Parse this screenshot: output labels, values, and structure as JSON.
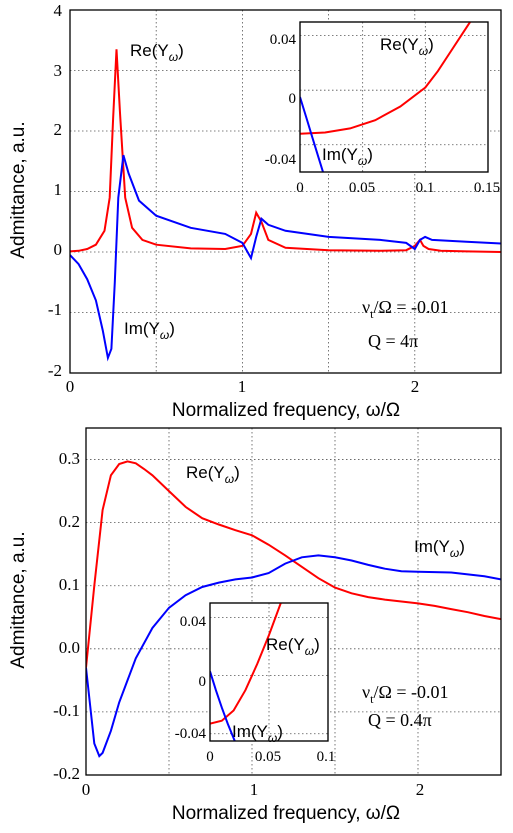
{
  "chart_data": [
    {
      "type": "line",
      "xlabel": "Normalized frequency, ω/Ω",
      "ylabel": "Admittance, a.u.",
      "xlim": [
        0,
        2.5
      ],
      "ylim": [
        -2,
        4
      ],
      "grid": true,
      "x_ticks": [
        "0",
        "1",
        "2"
      ],
      "y_ticks": [
        "-2",
        "-1",
        "0",
        "1",
        "2",
        "3",
        "4"
      ],
      "series": [
        {
          "name": "Re(Yω)",
          "color": "#ff0000",
          "x": [
            0,
            0.05,
            0.1,
            0.15,
            0.2,
            0.23,
            0.25,
            0.27,
            0.29,
            0.32,
            0.36,
            0.42,
            0.5,
            0.7,
            0.9,
            1.0,
            1.05,
            1.08,
            1.11,
            1.15,
            1.25,
            1.5,
            1.8,
            1.95,
            2.0,
            2.03,
            2.05,
            2.08,
            2.15,
            2.3,
            2.5
          ],
          "y": [
            0.01,
            0.02,
            0.05,
            0.12,
            0.35,
            0.9,
            2.2,
            3.35,
            2.3,
            0.9,
            0.4,
            0.2,
            0.12,
            0.06,
            0.05,
            0.1,
            0.3,
            0.65,
            0.5,
            0.2,
            0.07,
            0.03,
            0.02,
            0.03,
            0.1,
            0.2,
            0.1,
            0.05,
            0.02,
            0.01,
            0.0
          ]
        },
        {
          "name": "Im(Yω)",
          "color": "#0000ff",
          "x": [
            0,
            0.05,
            0.1,
            0.15,
            0.19,
            0.22,
            0.24,
            0.26,
            0.28,
            0.31,
            0.34,
            0.4,
            0.5,
            0.7,
            0.9,
            1.0,
            1.05,
            1.08,
            1.11,
            1.15,
            1.25,
            1.5,
            1.8,
            1.95,
            2.0,
            2.03,
            2.06,
            2.1,
            2.3,
            2.5
          ],
          "y": [
            -0.05,
            -0.2,
            -0.45,
            -0.8,
            -1.3,
            -1.75,
            -1.6,
            -0.5,
            0.9,
            1.6,
            1.3,
            0.85,
            0.6,
            0.4,
            0.3,
            0.15,
            -0.1,
            0.25,
            0.55,
            0.45,
            0.35,
            0.25,
            0.2,
            0.15,
            0.05,
            0.2,
            0.25,
            0.2,
            0.17,
            0.14
          ]
        }
      ],
      "labels": {
        "re": "Re(Y",
        "im": "Im(Y",
        "sub": "ω",
        "close": ")",
        "param_nu": "ν",
        "param_nu_sub": "t",
        "param_ratio": "/Ω = -0.01",
        "param_q": "Q = 4π"
      },
      "inset": {
        "xlim": [
          0,
          0.15
        ],
        "ylim": [
          -0.06,
          0.05
        ],
        "x_ticks": [
          "0",
          "0.05",
          "0.1",
          "0.15"
        ],
        "y_ticks": [
          "0.04",
          "0",
          "-0.04"
        ],
        "re_x": [
          0,
          0.02,
          0.04,
          0.06,
          0.08,
          0.1,
          0.11,
          0.12,
          0.13,
          0.14
        ],
        "re_y": [
          -0.032,
          -0.031,
          -0.028,
          -0.022,
          -0.012,
          0.002,
          0.014,
          0.028,
          0.042,
          0.056
        ],
        "im_x": [
          0,
          0.005,
          0.01,
          0.015,
          0.02
        ],
        "im_y": [
          -0.005,
          -0.02,
          -0.035,
          -0.05,
          -0.065
        ]
      }
    },
    {
      "type": "line",
      "xlabel": "Normalized frequency, ω/Ω",
      "ylabel": "Admittance, a.u.",
      "xlim": [
        0,
        2.5
      ],
      "ylim": [
        -0.2,
        0.35
      ],
      "grid": true,
      "x_ticks": [
        "0",
        "1",
        "2"
      ],
      "y_ticks": [
        "-0.2",
        "-0.1",
        "0.0",
        "0.1",
        "0.2",
        "0.3"
      ],
      "series": [
        {
          "name": "Re(Yω)",
          "color": "#ff0000",
          "x": [
            0,
            0.05,
            0.1,
            0.15,
            0.2,
            0.25,
            0.3,
            0.35,
            0.4,
            0.5,
            0.6,
            0.7,
            0.8,
            0.9,
            1.0,
            1.1,
            1.2,
            1.3,
            1.4,
            1.5,
            1.6,
            1.7,
            1.8,
            1.9,
            2.0,
            2.1,
            2.2,
            2.3,
            2.4,
            2.5
          ],
          "y": [
            -0.03,
            0.1,
            0.22,
            0.275,
            0.293,
            0.297,
            0.294,
            0.285,
            0.275,
            0.25,
            0.225,
            0.207,
            0.197,
            0.188,
            0.18,
            0.165,
            0.148,
            0.13,
            0.112,
            0.097,
            0.088,
            0.082,
            0.078,
            0.075,
            0.072,
            0.068,
            0.063,
            0.058,
            0.052,
            0.047
          ]
        },
        {
          "name": "Im(Yω)",
          "color": "#0000ff",
          "x": [
            0,
            0.05,
            0.08,
            0.1,
            0.15,
            0.2,
            0.3,
            0.4,
            0.5,
            0.6,
            0.7,
            0.8,
            0.9,
            1.0,
            1.1,
            1.2,
            1.3,
            1.4,
            1.5,
            1.6,
            1.7,
            1.8,
            1.9,
            2.0,
            2.2,
            2.4,
            2.5
          ],
          "y": [
            -0.03,
            -0.15,
            -0.17,
            -0.165,
            -0.13,
            -0.085,
            -0.015,
            0.033,
            0.065,
            0.085,
            0.098,
            0.105,
            0.11,
            0.113,
            0.12,
            0.135,
            0.145,
            0.148,
            0.145,
            0.14,
            0.133,
            0.127,
            0.123,
            0.122,
            0.121,
            0.115,
            0.11
          ]
        }
      ],
      "labels": {
        "re": "Re(Y",
        "im": "Im(Y",
        "sub": "ω",
        "close": ")",
        "param_nu": "ν",
        "param_nu_sub": "t",
        "param_ratio": "/Ω = -0.01",
        "param_q": "Q = 0.4π"
      },
      "inset": {
        "xlim": [
          0,
          0.1
        ],
        "ylim": [
          -0.045,
          0.05
        ],
        "x_ticks": [
          "0",
          "0.05",
          "0.1"
        ],
        "y_ticks": [
          "0.04",
          "0",
          "-0.04"
        ],
        "re_x": [
          0,
          0.01,
          0.02,
          0.03,
          0.04,
          0.05,
          0.06
        ],
        "re_y": [
          -0.033,
          -0.031,
          -0.024,
          -0.01,
          0.008,
          0.028,
          0.05
        ],
        "im_x": [
          0,
          0.005,
          0.01,
          0.015,
          0.02,
          0.025
        ],
        "im_y": [
          0.003,
          -0.01,
          -0.022,
          -0.033,
          -0.043,
          -0.053
        ]
      }
    }
  ]
}
